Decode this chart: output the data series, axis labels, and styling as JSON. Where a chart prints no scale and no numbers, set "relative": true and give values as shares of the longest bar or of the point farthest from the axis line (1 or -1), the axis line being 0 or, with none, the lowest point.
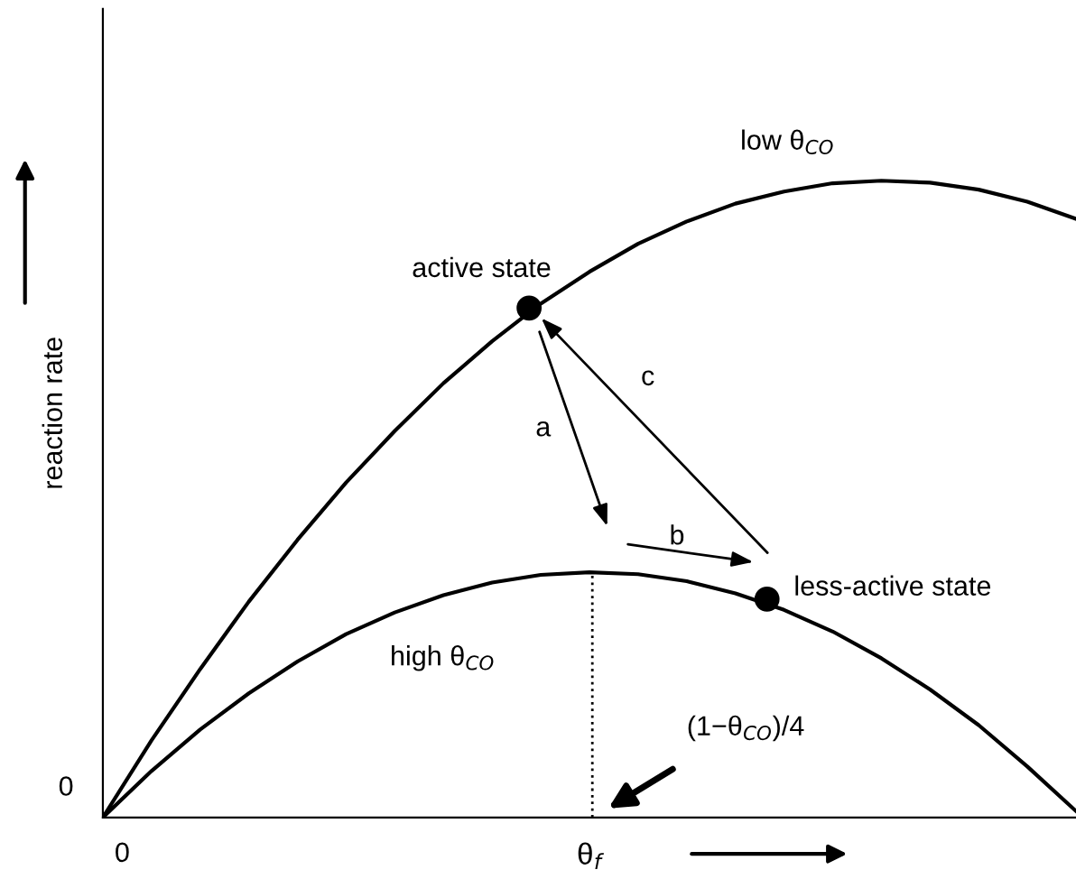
{
  "chart_data": {
    "type": "line",
    "relative": true,
    "xlabel": "θ$_{f}$",
    "ylabel": "reaction rate",
    "categories": [
      null,
      null,
      null,
      null,
      null,
      null,
      null,
      null,
      null,
      null,
      null,
      null,
      null,
      null,
      null,
      null,
      null,
      null,
      null,
      null,
      null
    ],
    "series": [
      {
        "color": "#000000",
        "values": [
          0,
          0.121,
          0.233,
          0.339,
          0.436,
          0.526,
          0.607,
          0.682,
          0.748,
          0.807,
          0.857,
          0.901,
          0.936,
          0.964,
          0.983,
          0.996,
          1.0,
          0.997,
          0.986,
          0.967,
          0.94
        ]
      },
      {
        "color": "#000000",
        "values": [
          0,
          0.073,
          0.138,
          0.195,
          0.245,
          0.288,
          0.322,
          0.349,
          0.369,
          0.381,
          0.385,
          0.382,
          0.371,
          0.352,
          0.326,
          0.292,
          0.25,
          0.201,
          0.145,
          0.08,
          0.01
        ]
      }
    ],
    "annotations": [
      "0",
      "0",
      "low θ$_{CO}$",
      "high θ$_{CO}$",
      "active state",
      "less-active state",
      "a",
      "b",
      "c",
      "(1−θ$_{CO}$)/4"
    ],
    "legend": false,
    "marker": "none",
    "line_style": "solid"
  }
}
